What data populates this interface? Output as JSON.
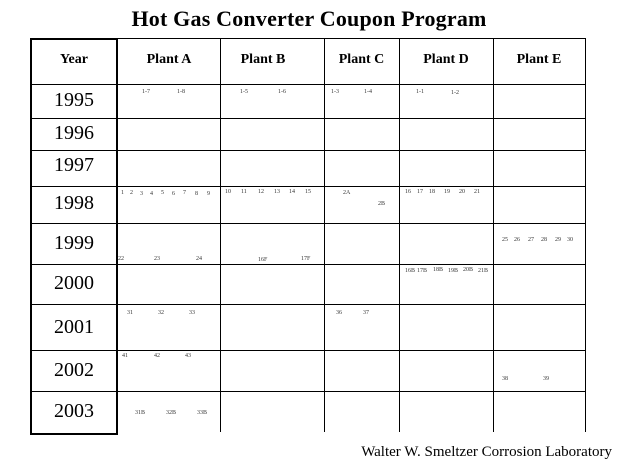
{
  "title": "Hot Gas Converter Coupon Program",
  "footer": "Walter W. Smeltzer Corrosion Laboratory",
  "headers": [
    "Year",
    "Plant A",
    "Plant B",
    "Plant C",
    "Plant D",
    "Plant E"
  ],
  "years": [
    "1995",
    "1996",
    "1997",
    "1998",
    "1999",
    "2000",
    "2001",
    "2002",
    "2003"
  ],
  "coupons": {
    "y1995": {
      "a": [
        "1-7",
        "1-8"
      ],
      "b": [
        "1-5",
        "1-6"
      ],
      "c": [
        "1-3",
        "1-4"
      ],
      "d": [
        "1-1",
        "1-2"
      ]
    },
    "y1998": {
      "a": [
        "1",
        "2",
        "3",
        "4",
        "5",
        "6",
        "7",
        "8",
        "9"
      ],
      "b": [
        "10",
        "11",
        "12",
        "13",
        "14",
        "15"
      ],
      "c": [
        "2A",
        "2B"
      ],
      "d": [
        "16",
        "17",
        "18",
        "19",
        "20",
        "21"
      ]
    },
    "y1999": {
      "a": [
        "22",
        "23",
        "24"
      ],
      "b": [
        "16F",
        "17F"
      ],
      "e": [
        "25",
        "26",
        "27",
        "28",
        "29",
        "30"
      ]
    },
    "y2000": {
      "d": [
        "16B",
        "17B",
        "18B",
        "19B",
        "20B",
        "21B"
      ]
    },
    "y2001": {
      "a": [
        "31",
        "32",
        "33"
      ],
      "c": [
        "36",
        "37"
      ]
    },
    "y2002": {
      "a": [
        "41",
        "42",
        "43"
      ],
      "e": [
        "38",
        "39"
      ]
    },
    "y2003": {
      "a": [
        "31B",
        "32B",
        "33B"
      ]
    }
  }
}
